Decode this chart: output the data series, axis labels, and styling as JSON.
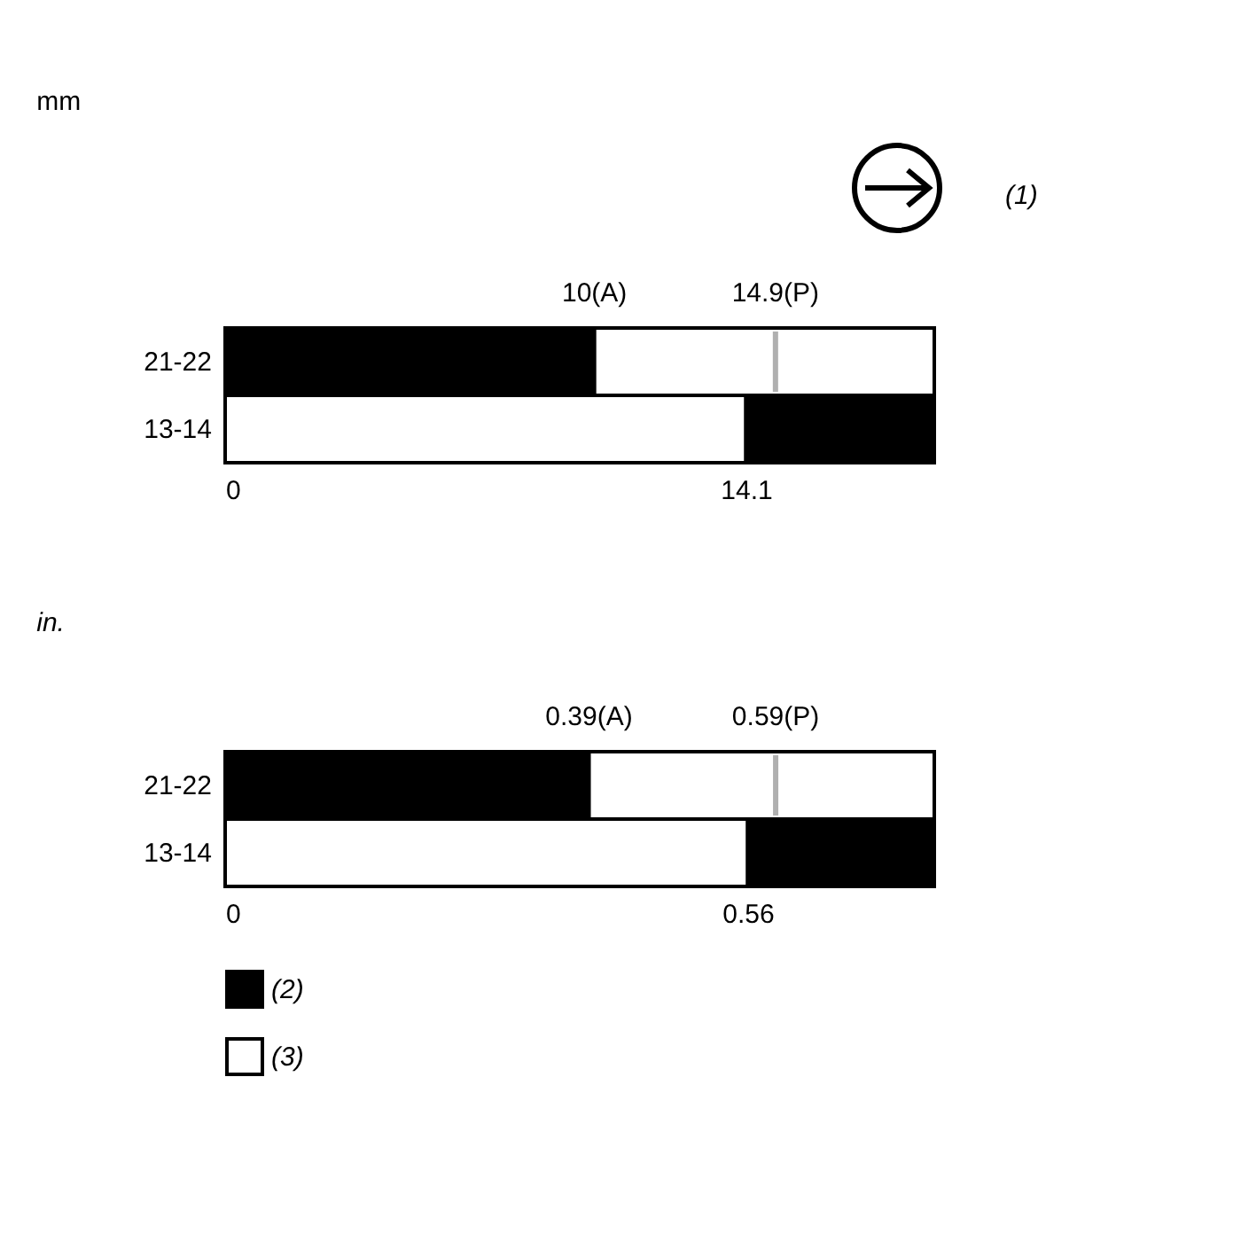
{
  "chart_data": [
    {
      "type": "bar",
      "orientation": "horizontal",
      "stacked": true,
      "title": "mm",
      "categories": [
        "21-22",
        "13-14"
      ],
      "series": [
        {
          "color": "#000000",
          "values": [
            10,
            null
          ]
        },
        {
          "color": "#ffffff",
          "values": [
            9.2,
            14.1
          ]
        },
        {
          "color": "#000000",
          "values": [
            null,
            5.1
          ]
        }
      ],
      "xlim": [
        0,
        19.2
      ],
      "xticks": [
        0,
        14.1
      ],
      "x2lim": [
        0,
        19.2
      ],
      "x2ticks": [
        {
          "value": 10,
          "label": "10(A)"
        },
        {
          "value": 14.9,
          "label": "14.9(P)"
        }
      ],
      "ref_lines": [
        {
          "axis": "x",
          "value": 14.9,
          "color": "#b0b0b0"
        }
      ],
      "annotations": [
        "(1)"
      ]
    },
    {
      "type": "bar",
      "orientation": "horizontal",
      "stacked": true,
      "title": "in.",
      "categories": [
        "21-22",
        "13-14"
      ],
      "series": [
        {
          "name": "(2)",
          "color": "#000000",
          "values": [
            0.39,
            null
          ]
        },
        {
          "name": "(3)",
          "color": "#ffffff",
          "values": [
            0.37,
            0.56
          ]
        },
        {
          "color": "#000000",
          "values": [
            null,
            0.2
          ]
        }
      ],
      "xlim": [
        0,
        0.76
      ],
      "xticks": [
        0,
        0.56
      ],
      "x2lim": [
        0,
        0.76
      ],
      "x2ticks": [
        {
          "value": 0.39,
          "label": "0.39(A)"
        },
        {
          "value": 0.59,
          "label": "0.59(P)"
        }
      ],
      "legend": "bottom left",
      "ref_lines": [
        {
          "axis": "x",
          "value": 0.59,
          "color": "#b0b0b0"
        }
      ]
    }
  ]
}
